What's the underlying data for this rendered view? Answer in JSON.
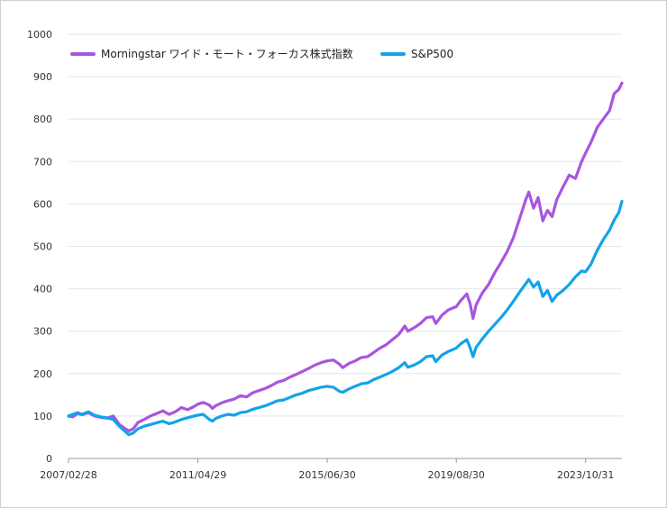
{
  "colors": {
    "wide_moat": "#a855e0",
    "sp500": "#13a3e8",
    "grid": "#e6e6e6",
    "axis": "#9a9a9a"
  },
  "chart_data": {
    "type": "line",
    "title": "",
    "xlabel": "",
    "ylabel": "",
    "ylim": [
      0,
      1000
    ],
    "yticks": [
      "0",
      "100",
      "200",
      "300",
      "400",
      "500",
      "600",
      "700",
      "800",
      "900",
      "1000"
    ],
    "xticks": [
      {
        "label": "2007/02/28",
        "x": 2007.16
      },
      {
        "label": "2011/04/29",
        "x": 2011.33
      },
      {
        "label": "2015/06/30",
        "x": 2015.5
      },
      {
        "label": "2019/08/30",
        "x": 2019.66
      },
      {
        "label": "2023/10/31",
        "x": 2023.83
      }
    ],
    "xlim": [
      2007.16,
      2025.0
    ],
    "grid": "horizontal",
    "legend": "top-left",
    "series": [
      {
        "name": "Morningstar ワイド・モート・フォーカス株式指数",
        "color": "#a855e0",
        "points": [
          [
            2007.16,
            100
          ],
          [
            2007.3,
            98
          ],
          [
            2007.45,
            106
          ],
          [
            2007.6,
            103
          ],
          [
            2007.8,
            108
          ],
          [
            2008.0,
            100
          ],
          [
            2008.2,
            97
          ],
          [
            2008.4,
            95
          ],
          [
            2008.6,
            100
          ],
          [
            2008.8,
            80
          ],
          [
            2008.95,
            72
          ],
          [
            2009.1,
            65
          ],
          [
            2009.25,
            70
          ],
          [
            2009.4,
            85
          ],
          [
            2009.6,
            92
          ],
          [
            2009.8,
            100
          ],
          [
            2010.0,
            106
          ],
          [
            2010.2,
            112
          ],
          [
            2010.4,
            104
          ],
          [
            2010.6,
            110
          ],
          [
            2010.8,
            120
          ],
          [
            2011.0,
            115
          ],
          [
            2011.2,
            122
          ],
          [
            2011.33,
            128
          ],
          [
            2011.5,
            132
          ],
          [
            2011.7,
            126
          ],
          [
            2011.8,
            118
          ],
          [
            2011.9,
            124
          ],
          [
            2012.1,
            131
          ],
          [
            2012.3,
            136
          ],
          [
            2012.5,
            140
          ],
          [
            2012.7,
            148
          ],
          [
            2012.9,
            145
          ],
          [
            2013.1,
            155
          ],
          [
            2013.3,
            160
          ],
          [
            2013.5,
            165
          ],
          [
            2013.7,
            172
          ],
          [
            2013.9,
            180
          ],
          [
            2014.1,
            184
          ],
          [
            2014.3,
            192
          ],
          [
            2014.5,
            198
          ],
          [
            2014.7,
            205
          ],
          [
            2014.9,
            212
          ],
          [
            2015.1,
            220
          ],
          [
            2015.3,
            226
          ],
          [
            2015.5,
            230
          ],
          [
            2015.7,
            232
          ],
          [
            2015.9,
            222
          ],
          [
            2016.0,
            214
          ],
          [
            2016.2,
            224
          ],
          [
            2016.4,
            230
          ],
          [
            2016.6,
            238
          ],
          [
            2016.8,
            240
          ],
          [
            2017.0,
            250
          ],
          [
            2017.2,
            260
          ],
          [
            2017.4,
            268
          ],
          [
            2017.6,
            280
          ],
          [
            2017.8,
            292
          ],
          [
            2018.0,
            312
          ],
          [
            2018.1,
            300
          ],
          [
            2018.3,
            308
          ],
          [
            2018.5,
            318
          ],
          [
            2018.7,
            332
          ],
          [
            2018.9,
            334
          ],
          [
            2019.0,
            318
          ],
          [
            2019.2,
            338
          ],
          [
            2019.4,
            350
          ],
          [
            2019.66,
            358
          ],
          [
            2019.8,
            372
          ],
          [
            2020.0,
            388
          ],
          [
            2020.1,
            366
          ],
          [
            2020.2,
            330
          ],
          [
            2020.3,
            362
          ],
          [
            2020.5,
            390
          ],
          [
            2020.7,
            410
          ],
          [
            2020.9,
            438
          ],
          [
            2021.1,
            462
          ],
          [
            2021.3,
            488
          ],
          [
            2021.5,
            520
          ],
          [
            2021.7,
            565
          ],
          [
            2021.9,
            610
          ],
          [
            2022.0,
            628
          ],
          [
            2022.15,
            590
          ],
          [
            2022.3,
            615
          ],
          [
            2022.45,
            560
          ],
          [
            2022.6,
            585
          ],
          [
            2022.75,
            570
          ],
          [
            2022.9,
            610
          ],
          [
            2023.1,
            640
          ],
          [
            2023.3,
            668
          ],
          [
            2023.5,
            660
          ],
          [
            2023.7,
            700
          ],
          [
            2023.83,
            720
          ],
          [
            2024.0,
            745
          ],
          [
            2024.2,
            780
          ],
          [
            2024.4,
            800
          ],
          [
            2024.6,
            820
          ],
          [
            2024.75,
            860
          ],
          [
            2024.9,
            870
          ],
          [
            2025.0,
            885
          ]
        ]
      },
      {
        "name": "S&P500",
        "color": "#13a3e8",
        "points": [
          [
            2007.16,
            100
          ],
          [
            2007.3,
            104
          ],
          [
            2007.45,
            108
          ],
          [
            2007.6,
            104
          ],
          [
            2007.8,
            110
          ],
          [
            2008.0,
            102
          ],
          [
            2008.2,
            98
          ],
          [
            2008.4,
            96
          ],
          [
            2008.6,
            92
          ],
          [
            2008.8,
            76
          ],
          [
            2008.95,
            66
          ],
          [
            2009.1,
            56
          ],
          [
            2009.25,
            60
          ],
          [
            2009.4,
            70
          ],
          [
            2009.6,
            76
          ],
          [
            2009.8,
            80
          ],
          [
            2010.0,
            84
          ],
          [
            2010.2,
            88
          ],
          [
            2010.4,
            82
          ],
          [
            2010.6,
            86
          ],
          [
            2010.8,
            92
          ],
          [
            2011.0,
            96
          ],
          [
            2011.2,
            100
          ],
          [
            2011.33,
            102
          ],
          [
            2011.5,
            104
          ],
          [
            2011.7,
            92
          ],
          [
            2011.8,
            88
          ],
          [
            2011.9,
            94
          ],
          [
            2012.1,
            100
          ],
          [
            2012.3,
            104
          ],
          [
            2012.5,
            102
          ],
          [
            2012.7,
            108
          ],
          [
            2012.9,
            110
          ],
          [
            2013.1,
            116
          ],
          [
            2013.3,
            120
          ],
          [
            2013.5,
            124
          ],
          [
            2013.7,
            130
          ],
          [
            2013.9,
            136
          ],
          [
            2014.1,
            138
          ],
          [
            2014.3,
            144
          ],
          [
            2014.5,
            150
          ],
          [
            2014.7,
            154
          ],
          [
            2014.9,
            160
          ],
          [
            2015.1,
            164
          ],
          [
            2015.3,
            168
          ],
          [
            2015.5,
            170
          ],
          [
            2015.7,
            168
          ],
          [
            2015.9,
            158
          ],
          [
            2016.0,
            156
          ],
          [
            2016.2,
            164
          ],
          [
            2016.4,
            170
          ],
          [
            2016.6,
            176
          ],
          [
            2016.8,
            178
          ],
          [
            2017.0,
            186
          ],
          [
            2017.2,
            192
          ],
          [
            2017.4,
            198
          ],
          [
            2017.6,
            205
          ],
          [
            2017.8,
            214
          ],
          [
            2018.0,
            226
          ],
          [
            2018.1,
            215
          ],
          [
            2018.3,
            220
          ],
          [
            2018.5,
            228
          ],
          [
            2018.7,
            240
          ],
          [
            2018.9,
            242
          ],
          [
            2019.0,
            228
          ],
          [
            2019.2,
            244
          ],
          [
            2019.4,
            252
          ],
          [
            2019.66,
            260
          ],
          [
            2019.8,
            270
          ],
          [
            2020.0,
            280
          ],
          [
            2020.1,
            262
          ],
          [
            2020.2,
            240
          ],
          [
            2020.3,
            262
          ],
          [
            2020.5,
            282
          ],
          [
            2020.7,
            300
          ],
          [
            2020.9,
            316
          ],
          [
            2021.1,
            332
          ],
          [
            2021.3,
            350
          ],
          [
            2021.5,
            370
          ],
          [
            2021.7,
            392
          ],
          [
            2021.9,
            412
          ],
          [
            2022.0,
            422
          ],
          [
            2022.15,
            404
          ],
          [
            2022.3,
            416
          ],
          [
            2022.45,
            382
          ],
          [
            2022.6,
            396
          ],
          [
            2022.75,
            370
          ],
          [
            2022.9,
            385
          ],
          [
            2023.1,
            396
          ],
          [
            2023.3,
            410
          ],
          [
            2023.5,
            428
          ],
          [
            2023.7,
            442
          ],
          [
            2023.83,
            440
          ],
          [
            2024.0,
            458
          ],
          [
            2024.2,
            490
          ],
          [
            2024.4,
            516
          ],
          [
            2024.6,
            538
          ],
          [
            2024.75,
            562
          ],
          [
            2024.9,
            580
          ],
          [
            2025.0,
            606
          ]
        ]
      }
    ]
  }
}
